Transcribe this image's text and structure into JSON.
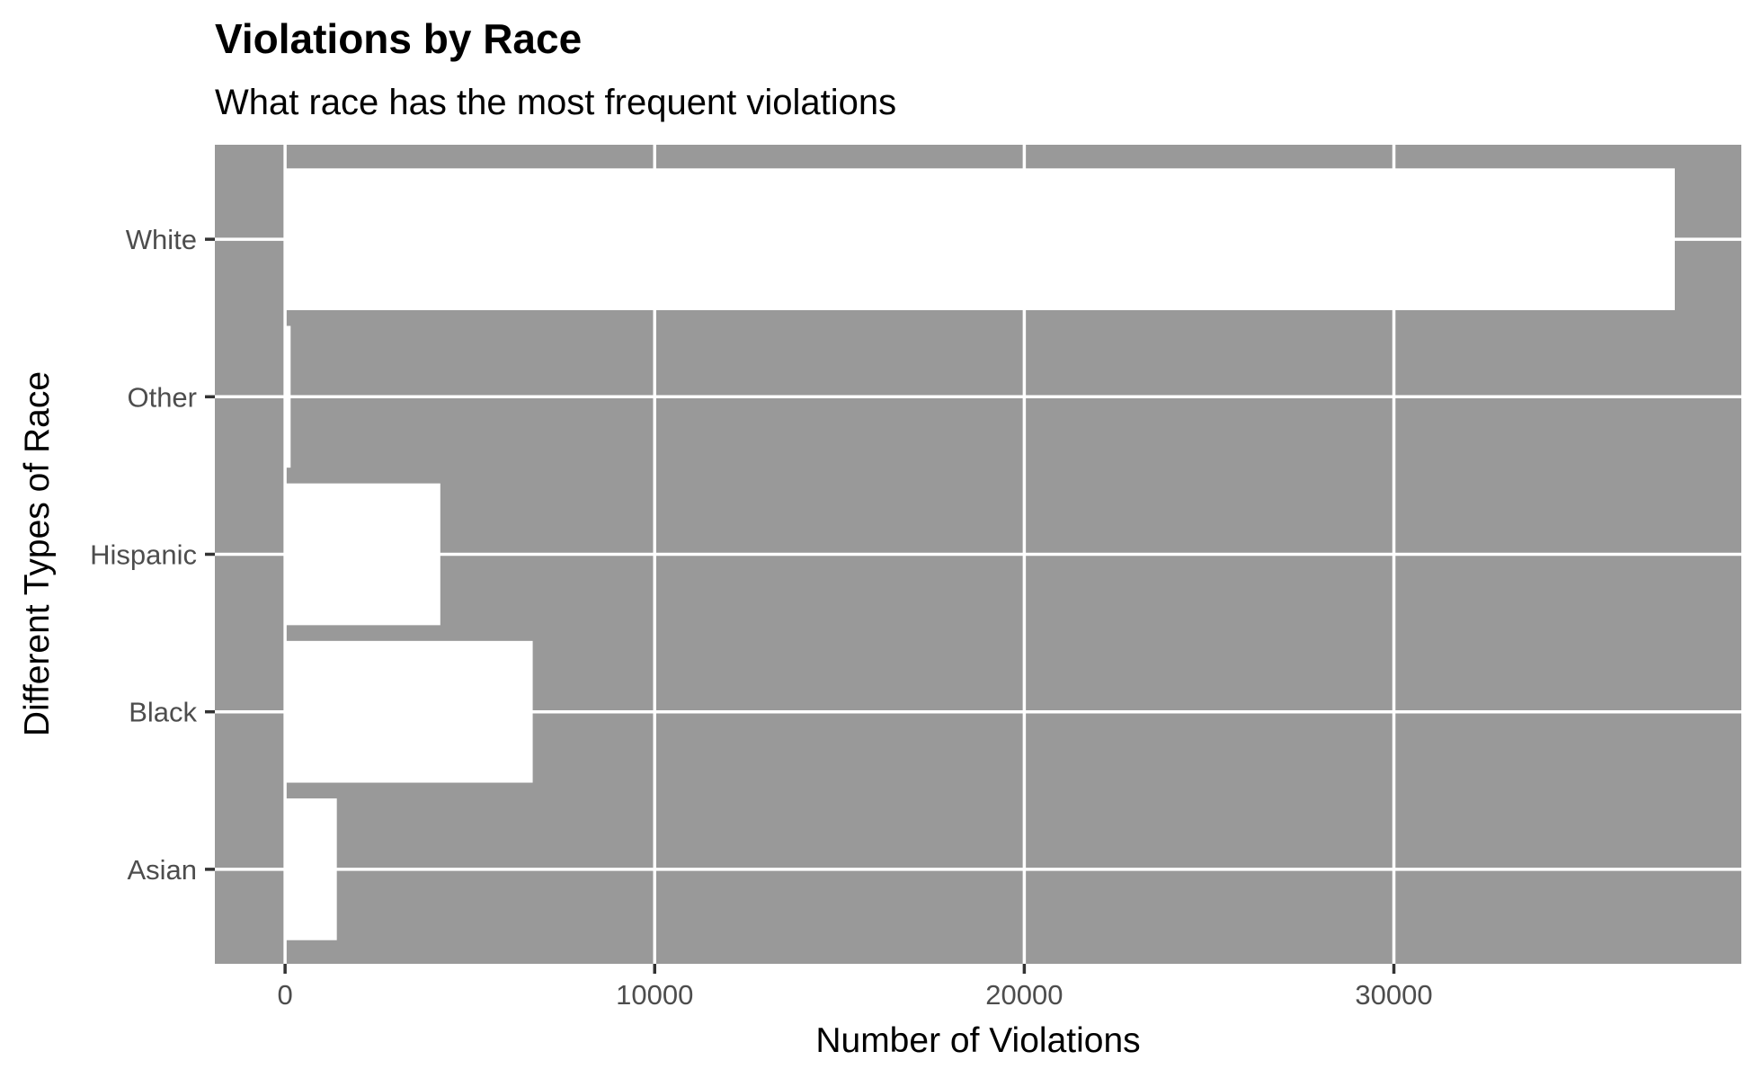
{
  "chart_data": {
    "type": "bar",
    "orientation": "horizontal",
    "title": "Violations by Race",
    "subtitle": "What race has the most frequent violations",
    "xlabel": "Number of Violations",
    "ylabel": "Different Types of Race",
    "categories": [
      "Asian",
      "Black",
      "Hispanic",
      "Other",
      "White"
    ],
    "values": [
      1400,
      6700,
      4200,
      150,
      37600
    ],
    "xlim": [
      -1900,
      39400
    ],
    "xticks": [
      0,
      10000,
      20000,
      30000
    ],
    "xtick_labels": [
      "0",
      "10000",
      "20000",
      "30000"
    ],
    "grid": true,
    "colors": {
      "panel": "#999999",
      "bar": "#ffffff",
      "grid": "#ffffff",
      "tick_text": "#4d4d4d",
      "title_text": "#000000"
    }
  }
}
